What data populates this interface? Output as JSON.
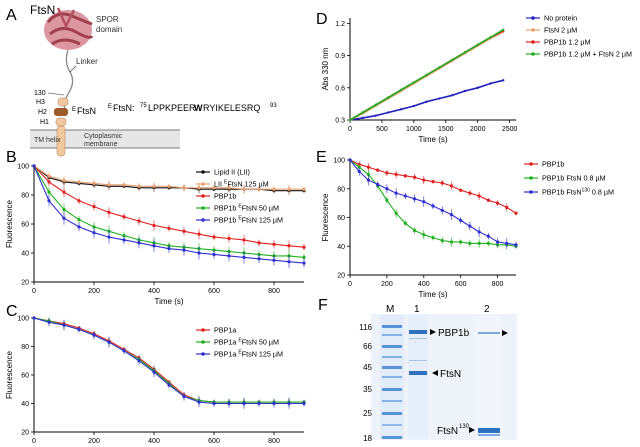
{
  "panel_letters": [
    "A",
    "B",
    "C",
    "D",
    "E",
    "F"
  ],
  "schematic": {
    "protein_name": "FtsN",
    "spor_label_1": "SPOR",
    "spor_label_2": "domain",
    "linker_label": "Linker",
    "residue_130": "130",
    "h3_label": "H3",
    "h2_label": "H2",
    "h1_label": "H1",
    "eftsn_sup": "E",
    "eftsn_main": "FtsN",
    "sequence_prefix_sup": "E",
    "sequence_prefix": "FtsN: ",
    "sequence_start": "75",
    "sequence_part1": "LPPKPEER",
    "sequence_bold": "W",
    "sequence_part2": "RYIKELESRQ",
    "sequence_end": "93",
    "tm_label": "TM helix",
    "membrane_label_1": "Cytoplasmic",
    "membrane_label_2": "membrane",
    "colors": {
      "spor": "#d6858f",
      "membrane": "#e6e6e6",
      "helix": "#f0c8a0",
      "eftsn": "#9e5a2a"
    }
  },
  "chart_data": [
    {
      "id": "B",
      "type": "line",
      "xlabel": "Time (s)",
      "ylabel": "Fluorescence",
      "xlim": [
        0,
        900
      ],
      "ylim": [
        20,
        100
      ],
      "xticks": [
        0,
        200,
        400,
        600,
        800
      ],
      "yticks": [
        20,
        40,
        60,
        80,
        100
      ],
      "x": [
        0,
        50,
        100,
        150,
        200,
        250,
        300,
        350,
        400,
        450,
        500,
        550,
        600,
        650,
        700,
        750,
        800,
        850,
        900
      ],
      "series": [
        {
          "name_sup": "",
          "name": "Lipid II (LII)",
          "color": "#111111",
          "values": [
            100,
            92,
            89,
            88,
            87,
            86,
            86,
            85,
            85,
            85,
            85,
            84,
            84,
            84,
            84,
            84,
            83,
            83,
            83
          ]
        },
        {
          "name_sup": "E",
          "name": "LII FtsN 125 µM",
          "name_prefix": "LII ",
          "name_suffix": "FtsN 125 µM",
          "color": "#e8a070",
          "values": [
            100,
            93,
            90,
            89,
            88,
            87,
            87,
            86,
            86,
            86,
            85,
            85,
            85,
            85,
            84,
            84,
            84,
            84,
            84
          ]
        },
        {
          "name_sup": "",
          "name": "PBP1b",
          "color": "#e02020",
          "values": [
            100,
            89,
            82,
            76,
            72,
            68,
            65,
            62,
            59,
            57,
            55,
            53,
            51,
            50,
            49,
            47,
            46,
            45,
            44
          ]
        },
        {
          "name_sup": "E",
          "name": "PBP1b FtsN 50 µM",
          "name_prefix": "PBP1b ",
          "name_suffix": "FtsN 50 µM",
          "color": "#20b020",
          "values": [
            100,
            82,
            70,
            63,
            58,
            55,
            52,
            49,
            47,
            45,
            44,
            43,
            42,
            41,
            40,
            39,
            38,
            38,
            37
          ]
        },
        {
          "name_sup": "E",
          "name": "PBP1b FtsN 125 µM",
          "name_prefix": "PBP1b ",
          "name_suffix": "FtsN 125 µM",
          "color": "#3030d0",
          "values": [
            100,
            76,
            64,
            58,
            54,
            51,
            49,
            47,
            45,
            43,
            42,
            40,
            39,
            38,
            37,
            36,
            35,
            34,
            33
          ]
        }
      ]
    },
    {
      "id": "C",
      "type": "line",
      "xlabel": "Time (s)",
      "ylabel": "Fluorescence",
      "xlim": [
        0,
        900
      ],
      "ylim": [
        20,
        100
      ],
      "xticks": [
        0,
        200,
        400,
        600,
        800
      ],
      "yticks": [
        20,
        40,
        60,
        80,
        100
      ],
      "x": [
        0,
        50,
        100,
        150,
        200,
        250,
        300,
        350,
        400,
        450,
        500,
        550,
        600,
        650,
        700,
        750,
        800,
        850,
        900
      ],
      "series": [
        {
          "name_sup": "",
          "name": "PBP1a",
          "color": "#e02020",
          "values": [
            100,
            98,
            96,
            93,
            89,
            84,
            78,
            72,
            64,
            55,
            46,
            42,
            41,
            41,
            41,
            41,
            41,
            41,
            41
          ]
        },
        {
          "name_sup": "E",
          "name": "PBP1a FtsN 50 µM",
          "name_prefix": "PBP1a ",
          "name_suffix": "FtsN 50 µM",
          "color": "#20b020",
          "values": [
            100,
            98,
            95,
            92,
            88,
            83,
            77,
            71,
            63,
            54,
            45,
            42,
            41,
            41,
            41,
            41,
            41,
            41,
            41
          ]
        },
        {
          "name_sup": "E",
          "name": "PBP1a FtsN 125 µM",
          "name_prefix": "PBP1a ",
          "name_suffix": "FtsN 125 µM",
          "color": "#3030d0",
          "values": [
            100,
            97,
            95,
            92,
            88,
            83,
            77,
            70,
            62,
            53,
            45,
            41,
            40,
            40,
            40,
            40,
            40,
            40,
            40
          ]
        }
      ]
    },
    {
      "id": "D",
      "type": "line",
      "xlabel": "Time (s)",
      "ylabel": "Abs 330 nm",
      "xlim": [
        0,
        2600
      ],
      "ylim": [
        0.3,
        1.25
      ],
      "xticks": [
        0,
        500,
        1000,
        1500,
        2000,
        2500
      ],
      "yticks": [
        0.3,
        0.6,
        0.9,
        1.2
      ],
      "x": [
        0,
        200,
        400,
        600,
        800,
        1000,
        1200,
        1400,
        1600,
        1800,
        2000,
        2200,
        2400
      ],
      "series": [
        {
          "name": "No protein",
          "color": "#2020c0",
          "values": [
            0.3,
            0.32,
            0.34,
            0.37,
            0.4,
            0.43,
            0.47,
            0.5,
            0.53,
            0.57,
            0.6,
            0.64,
            0.67
          ]
        },
        {
          "name": "FtsN 2 µM",
          "color": "#e8a070",
          "values": [
            0.3,
            0.36,
            0.43,
            0.5,
            0.57,
            0.64,
            0.71,
            0.78,
            0.85,
            0.92,
            0.99,
            1.06,
            1.12
          ]
        },
        {
          "name": "PBP1b 1.2 µM",
          "color": "#e02020",
          "values": [
            0.3,
            0.37,
            0.44,
            0.51,
            0.58,
            0.65,
            0.72,
            0.79,
            0.86,
            0.93,
            1.0,
            1.07,
            1.13
          ]
        },
        {
          "name": "PBP1b 1.2 µM + FtsN 2 µM",
          "color": "#20b020",
          "values": [
            0.3,
            0.37,
            0.44,
            0.51,
            0.58,
            0.65,
            0.72,
            0.79,
            0.86,
            0.93,
            1.0,
            1.07,
            1.14
          ]
        }
      ]
    },
    {
      "id": "E",
      "type": "line",
      "xlabel": "Time (s)",
      "ylabel": "Fluorescence",
      "xlim": [
        0,
        900
      ],
      "ylim": [
        20,
        100
      ],
      "xticks": [
        0,
        200,
        400,
        600,
        800
      ],
      "yticks": [
        20,
        40,
        60,
        80,
        100
      ],
      "x": [
        0,
        50,
        100,
        150,
        200,
        250,
        300,
        350,
        400,
        450,
        500,
        550,
        600,
        650,
        700,
        750,
        800,
        850,
        900
      ],
      "series": [
        {
          "name": "PBP1b",
          "color": "#e02020",
          "values": [
            100,
            97,
            95,
            93,
            91,
            90,
            89,
            88,
            86,
            85,
            84,
            82,
            79,
            77,
            75,
            72,
            70,
            67,
            63
          ]
        },
        {
          "name": "PBP1b FtsN 0.8 µM",
          "color": "#20b020",
          "values": [
            100,
            95,
            90,
            82,
            72,
            63,
            56,
            51,
            48,
            46,
            44,
            43,
            43,
            42,
            42,
            42,
            41,
            41,
            40
          ]
        },
        {
          "name_sup": "130",
          "name": "PBP1b FtsN130 0.8 µM",
          "name_prefix": "PBP1b FtsN",
          "name_suffix": " 0.8 µM",
          "color": "#3030d0",
          "values": [
            100,
            92,
            86,
            83,
            80,
            77,
            75,
            73,
            71,
            68,
            65,
            62,
            58,
            54,
            50,
            47,
            43,
            42,
            41
          ]
        }
      ]
    }
  ],
  "gel": {
    "lane_labels": [
      "M",
      "1",
      "2"
    ],
    "markers": [
      "116",
      "66",
      "45",
      "35",
      "25",
      "18"
    ],
    "band_pbp1b": "PBP1b",
    "band_ftsn": "FtsN",
    "band_ftsn130": "FtsN",
    "band_ftsn130_sup": "130",
    "colors": {
      "gel_bg": "#eef3fa",
      "band": "#2f6fc0",
      "ladder": "#4a8ad8"
    }
  }
}
